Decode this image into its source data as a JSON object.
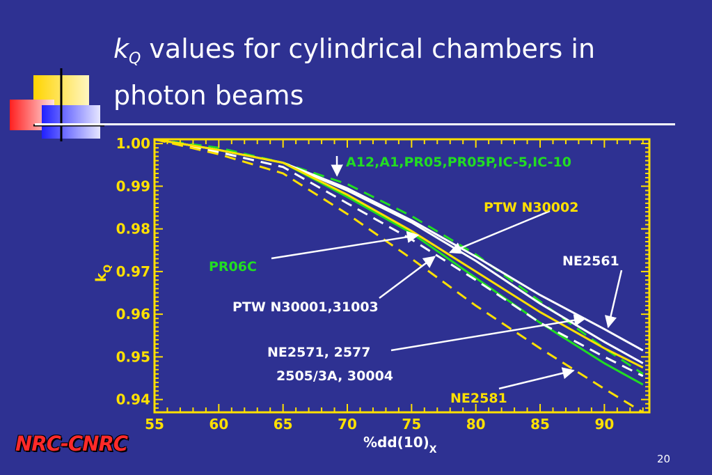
{
  "slide": {
    "title_k": "k",
    "title_sub": "Q",
    "title_rest": " values for cylindrical chambers in photon beams",
    "logo": "NRC-CNRC",
    "page_number": "20"
  },
  "colors": {
    "background": "#2e3192",
    "axis": "#ffe000",
    "green": "#22dd22",
    "white": "#ffffff",
    "yellow": "#ffe000"
  },
  "chart_data": {
    "type": "line",
    "xlabel": "%dd(10)",
    "xlabel_sub": "X",
    "ylabel": "k",
    "ylabel_sub": "Q",
    "xlim": [
      55,
      93.5
    ],
    "ylim": [
      0.937,
      1.001
    ],
    "x_ticks": [
      55,
      60,
      65,
      70,
      75,
      80,
      85,
      90
    ],
    "x_tick_labels": [
      "55",
      "60",
      "65",
      "70",
      "75",
      "80",
      "85",
      "90"
    ],
    "y_ticks": [
      0.94,
      0.95,
      0.96,
      0.97,
      0.98,
      0.99,
      1.0
    ],
    "y_tick_labels": [
      "0.94",
      "0.95",
      "0.96",
      "0.97",
      "0.98",
      "0.99",
      "1.00"
    ],
    "grid": false,
    "series": [
      {
        "name": "A12,A1,PR05,PR05P,IC-5,IC-10",
        "color": "#22dd22",
        "dash": true,
        "points": [
          [
            55,
            1.001
          ],
          [
            60,
            0.999
          ],
          [
            65,
            0.9955
          ],
          [
            70,
            0.9905
          ],
          [
            75,
            0.983
          ],
          [
            80,
            0.974
          ],
          [
            85,
            0.963
          ],
          [
            90,
            0.952
          ],
          [
            93,
            0.946
          ]
        ]
      },
      {
        "name": "PTW N30002",
        "color": "#ffffff",
        "dash": false,
        "points": [
          [
            55,
            1.001
          ],
          [
            60,
            0.9985
          ],
          [
            65,
            0.9955
          ],
          [
            70,
            0.989
          ],
          [
            75,
            0.9815
          ],
          [
            80,
            0.9725
          ],
          [
            85,
            0.9625
          ],
          [
            90,
            0.9535
          ],
          [
            93,
            0.9485
          ]
        ]
      },
      {
        "name": "NE2561",
        "color": "#ffffff",
        "dash": false,
        "points": [
          [
            55,
            1.001
          ],
          [
            60,
            0.9985
          ],
          [
            65,
            0.9955
          ],
          [
            70,
            0.9895
          ],
          [
            75,
            0.982
          ],
          [
            80,
            0.9735
          ],
          [
            85,
            0.9645
          ],
          [
            90,
            0.9565
          ],
          [
            93,
            0.9515
          ]
        ]
      },
      {
        "name": "PR06C",
        "color": "#22dd22",
        "dash": false,
        "points": [
          [
            55,
            1.001
          ],
          [
            60,
            0.9985
          ],
          [
            65,
            0.9955
          ],
          [
            70,
            0.9875
          ],
          [
            75,
            0.979
          ],
          [
            80,
            0.9685
          ],
          [
            85,
            0.958
          ],
          [
            90,
            0.9485
          ],
          [
            93,
            0.9435
          ]
        ]
      },
      {
        "name": "PTW N30001,31003",
        "color": "#ffffff",
        "dash": true,
        "points": [
          [
            55,
            1.001
          ],
          [
            60,
            0.998
          ],
          [
            65,
            0.9945
          ],
          [
            70,
            0.986
          ],
          [
            75,
            0.9775
          ],
          [
            80,
            0.968
          ],
          [
            85,
            0.958
          ],
          [
            90,
            0.95
          ],
          [
            93,
            0.9455
          ]
        ]
      },
      {
        "name": "NE2571, 2577 2505/3A, 30004",
        "color": "#ffe000",
        "dash": false,
        "points": [
          [
            55,
            1.001
          ],
          [
            60,
            0.9985
          ],
          [
            65,
            0.9955
          ],
          [
            70,
            0.988
          ],
          [
            75,
            0.9795
          ],
          [
            80,
            0.97
          ],
          [
            85,
            0.9605
          ],
          [
            90,
            0.952
          ],
          [
            93,
            0.9475
          ]
        ]
      },
      {
        "name": "NE2581",
        "color": "#ffe000",
        "dash": true,
        "points": [
          [
            55,
            1.001
          ],
          [
            60,
            0.9975
          ],
          [
            65,
            0.993
          ],
          [
            70,
            0.9835
          ],
          [
            75,
            0.973
          ],
          [
            80,
            0.962
          ],
          [
            85,
            0.952
          ],
          [
            90,
            0.9425
          ],
          [
            93,
            0.937
          ]
        ]
      }
    ],
    "annotations": [
      {
        "text": "A12,A1,PR05,PR05P,IC-5,IC-10",
        "color": "#22dd22",
        "arrow_to": [
          69.2,
          0.9925
        ]
      },
      {
        "text": "PTW N30002",
        "color": "#ffe000",
        "arrow_to": [
          78,
          0.9745
        ]
      },
      {
        "text": "NE2561",
        "color": "#ffffff",
        "arrow_to": [
          90.3,
          0.957
        ]
      },
      {
        "text": "PR06C",
        "color": "#22dd22",
        "arrow_to": [
          75.5,
          0.9785
        ]
      },
      {
        "text": "PTW N30001,31003",
        "color": "#ffffff",
        "arrow_to": [
          76.8,
          0.9735
        ]
      },
      {
        "text": "NE2571, 2577",
        "color": "#ffffff",
        "arrow_to": [
          88.5,
          0.959
        ]
      },
      {
        "text": "2505/3A, 30004",
        "color": "#ffffff",
        "arrow_to": null
      },
      {
        "text": "NE2581",
        "color": "#ffe000",
        "arrow_to": [
          87.6,
          0.9468
        ]
      }
    ]
  }
}
